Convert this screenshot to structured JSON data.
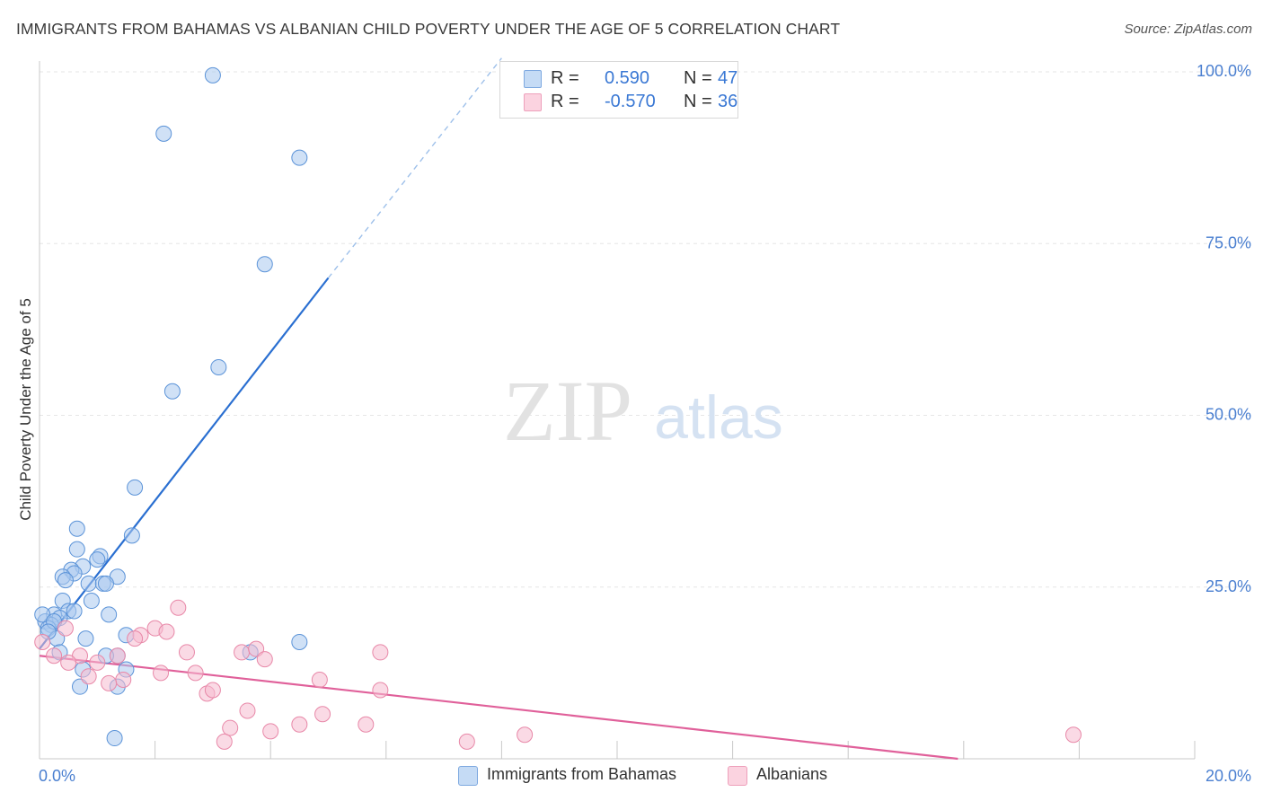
{
  "header": {
    "title": "IMMIGRANTS FROM BAHAMAS VS ALBANIAN CHILD POVERTY UNDER THE AGE OF 5 CORRELATION CHART",
    "source": "Source: ZipAtlas.com"
  },
  "watermark": {
    "zip": "ZIP",
    "atlas": "atlas"
  },
  "legend_top": {
    "rows": [
      {
        "r_label": "R =",
        "r_value": "0.590",
        "n_label": "N =",
        "n_value": "47",
        "color": "#aac8ee"
      },
      {
        "r_label": "R =",
        "r_value": "-0.570",
        "n_label": "N =",
        "n_value": "36",
        "color": "#f6bcd0"
      }
    ]
  },
  "legend_bottom": {
    "items": [
      {
        "label": "Immigrants from Bahamas",
        "color": "#aac8ee"
      },
      {
        "label": "Albanians",
        "color": "#f6bcd0"
      }
    ]
  },
  "chart_data": {
    "type": "scatter",
    "title": "IMMIGRANTS FROM BAHAMAS VS ALBANIAN CHILD POVERTY UNDER THE AGE OF 5 CORRELATION CHART",
    "xlabel": "",
    "ylabel": "Child Poverty Under the Age of 5",
    "xlim": [
      0,
      20
    ],
    "ylim": [
      0,
      100
    ],
    "x_tick_labels": [
      "0.0%",
      "20.0%"
    ],
    "y_tick_labels": [
      "25.0%",
      "50.0%",
      "75.0%",
      "100.0%"
    ],
    "y_ticks": [
      25,
      50,
      75,
      100
    ],
    "grid": true,
    "legend_position": "bottom",
    "series": [
      {
        "name": "Immigrants from Bahamas",
        "color": "#5b93d8",
        "fill": "#aac8ee",
        "r": 0.59,
        "n": 47,
        "trend": {
          "x": [
            0,
            5.0
          ],
          "y": [
            16.0,
            70.0
          ],
          "dashed_to": [
            8.0,
            102.0
          ],
          "color": "#2a6fd1"
        },
        "points": [
          {
            "x": 3.0,
            "y": 99.5
          },
          {
            "x": 2.15,
            "y": 91.0
          },
          {
            "x": 4.5,
            "y": 87.5
          },
          {
            "x": 3.9,
            "y": 72.0
          },
          {
            "x": 3.1,
            "y": 57.0
          },
          {
            "x": 2.3,
            "y": 53.5
          },
          {
            "x": 1.65,
            "y": 39.5
          },
          {
            "x": 0.65,
            "y": 33.5
          },
          {
            "x": 1.6,
            "y": 32.5
          },
          {
            "x": 0.65,
            "y": 30.5
          },
          {
            "x": 1.05,
            "y": 29.5
          },
          {
            "x": 1.0,
            "y": 29.0
          },
          {
            "x": 0.75,
            "y": 28.0
          },
          {
            "x": 0.55,
            "y": 27.5
          },
          {
            "x": 0.6,
            "y": 27.0
          },
          {
            "x": 0.4,
            "y": 26.5
          },
          {
            "x": 1.35,
            "y": 26.5
          },
          {
            "x": 0.45,
            "y": 26.0
          },
          {
            "x": 0.85,
            "y": 25.5
          },
          {
            "x": 1.1,
            "y": 25.5
          },
          {
            "x": 1.15,
            "y": 25.5
          },
          {
            "x": 0.4,
            "y": 23.0
          },
          {
            "x": 0.9,
            "y": 23.0
          },
          {
            "x": 0.5,
            "y": 21.5
          },
          {
            "x": 1.2,
            "y": 21.0
          },
          {
            "x": 0.25,
            "y": 21.0
          },
          {
            "x": 0.35,
            "y": 20.5
          },
          {
            "x": 0.1,
            "y": 20.0
          },
          {
            "x": 0.2,
            "y": 19.5
          },
          {
            "x": 0.15,
            "y": 19.0
          },
          {
            "x": 0.05,
            "y": 21.0
          },
          {
            "x": 0.3,
            "y": 17.5
          },
          {
            "x": 0.8,
            "y": 17.5
          },
          {
            "x": 1.5,
            "y": 18.0
          },
          {
            "x": 4.5,
            "y": 17.0
          },
          {
            "x": 0.35,
            "y": 15.5
          },
          {
            "x": 1.35,
            "y": 15.0
          },
          {
            "x": 1.15,
            "y": 15.0
          },
          {
            "x": 3.65,
            "y": 15.5
          },
          {
            "x": 0.75,
            "y": 13.0
          },
          {
            "x": 1.5,
            "y": 13.0
          },
          {
            "x": 0.7,
            "y": 10.5
          },
          {
            "x": 1.35,
            "y": 10.5
          },
          {
            "x": 1.3,
            "y": 3.0
          },
          {
            "x": 0.25,
            "y": 20.0
          },
          {
            "x": 0.15,
            "y": 18.5
          },
          {
            "x": 0.6,
            "y": 21.5
          }
        ]
      },
      {
        "name": "Albanians",
        "color": "#e888a8",
        "fill": "#f6bcd0",
        "r": -0.57,
        "n": 36,
        "trend": {
          "x": [
            0,
            15.9
          ],
          "y": [
            15.0,
            0.0
          ],
          "color": "#e0609a"
        },
        "points": [
          {
            "x": 2.4,
            "y": 22.0
          },
          {
            "x": 2.0,
            "y": 19.0
          },
          {
            "x": 2.2,
            "y": 18.5
          },
          {
            "x": 0.45,
            "y": 19.0
          },
          {
            "x": 1.75,
            "y": 18.0
          },
          {
            "x": 1.65,
            "y": 17.5
          },
          {
            "x": 2.55,
            "y": 15.5
          },
          {
            "x": 3.5,
            "y": 15.5
          },
          {
            "x": 3.75,
            "y": 16.0
          },
          {
            "x": 5.9,
            "y": 15.5
          },
          {
            "x": 1.35,
            "y": 15.0
          },
          {
            "x": 0.7,
            "y": 15.0
          },
          {
            "x": 0.25,
            "y": 15.0
          },
          {
            "x": 0.5,
            "y": 14.0
          },
          {
            "x": 1.0,
            "y": 14.0
          },
          {
            "x": 3.9,
            "y": 14.5
          },
          {
            "x": 2.1,
            "y": 12.5
          },
          {
            "x": 2.7,
            "y": 12.5
          },
          {
            "x": 0.85,
            "y": 12.0
          },
          {
            "x": 1.45,
            "y": 11.5
          },
          {
            "x": 1.2,
            "y": 11.0
          },
          {
            "x": 4.85,
            "y": 11.5
          },
          {
            "x": 2.9,
            "y": 9.5
          },
          {
            "x": 3.0,
            "y": 10.0
          },
          {
            "x": 5.9,
            "y": 10.0
          },
          {
            "x": 3.6,
            "y": 7.0
          },
          {
            "x": 4.9,
            "y": 6.5
          },
          {
            "x": 3.3,
            "y": 4.5
          },
          {
            "x": 4.5,
            "y": 5.0
          },
          {
            "x": 5.65,
            "y": 5.0
          },
          {
            "x": 4.0,
            "y": 4.0
          },
          {
            "x": 8.4,
            "y": 3.5
          },
          {
            "x": 17.9,
            "y": 3.5
          },
          {
            "x": 3.2,
            "y": 2.5
          },
          {
            "x": 7.4,
            "y": 2.5
          },
          {
            "x": 0.05,
            "y": 17.0
          }
        ]
      }
    ]
  }
}
